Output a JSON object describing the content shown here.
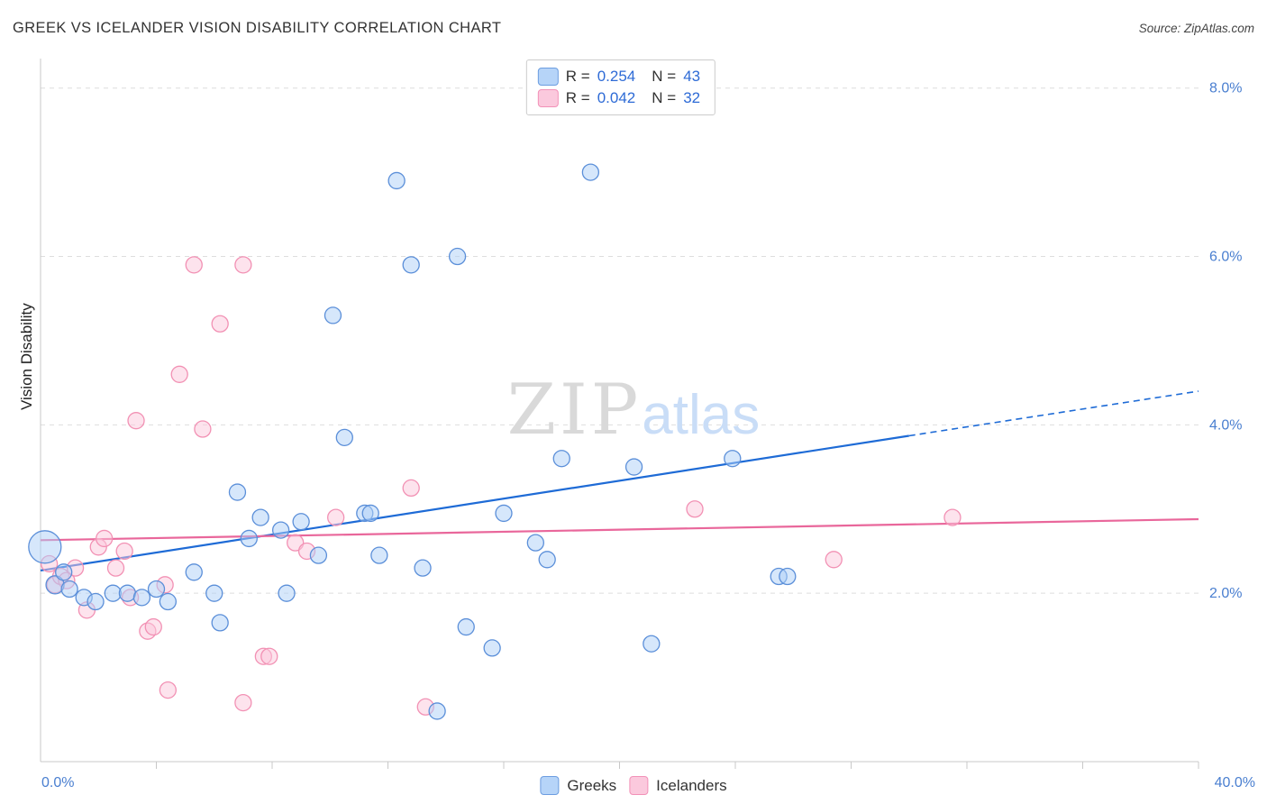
{
  "header": {
    "title": "GREEK VS ICELANDER VISION DISABILITY CORRELATION CHART",
    "source": "Source: ZipAtlas.com"
  },
  "watermark": {
    "zip": "ZIP",
    "atlas": "atlas"
  },
  "stats": [
    {
      "r_label": "R =",
      "r": "0.254",
      "n_label": "N =",
      "n": "43"
    },
    {
      "r_label": "R =",
      "r": "0.042",
      "n_label": "N =",
      "n": "32"
    }
  ],
  "bottom_legend": [
    {
      "label": "Greeks"
    },
    {
      "label": "Icelanders"
    }
  ],
  "colors": {
    "blue_fill": "#AECFF7",
    "blue_stroke": "#5B8FD9",
    "blue_trend": "#1E6BD6",
    "pink_fill": "#FBC7DB",
    "pink_stroke": "#F291B4",
    "pink_trend": "#E9679B",
    "axis_text": "#4A7FD0",
    "grid": "#dedede",
    "axis_line": "#c8c8c8"
  },
  "chart_data": {
    "type": "scatter",
    "title": "GREEK VS ICELANDER VISION DISABILITY CORRELATION CHART",
    "xlabel": "",
    "ylabel": "Vision Disability",
    "xlim": [
      0,
      40
    ],
    "ylim": [
      0,
      8.35
    ],
    "grid": true,
    "x_min_label": "0.0%",
    "x_max_label": "40.0%",
    "x_ticks": [
      4,
      8,
      12,
      16,
      20,
      24,
      28,
      32,
      36,
      40
    ],
    "y_ticks": [
      {
        "value": 2,
        "label": "2.0%"
      },
      {
        "value": 4,
        "label": "4.0%"
      },
      {
        "value": 6,
        "label": "6.0%"
      },
      {
        "value": 8,
        "label": "8.0%"
      }
    ],
    "series": [
      {
        "name": "Greeks",
        "R": 0.254,
        "N": 43,
        "trend": {
          "x1": 0,
          "y1": 2.27,
          "x2": 30,
          "y2": 3.87,
          "dash_x2": 40,
          "dash_y2": 4.4
        },
        "points": [
          [
            0.15,
            2.55,
            18
          ],
          [
            0.5,
            2.1,
            10
          ],
          [
            0.8,
            2.25
          ],
          [
            1.0,
            2.05
          ],
          [
            1.5,
            1.95
          ],
          [
            1.9,
            1.9
          ],
          [
            2.5,
            2.0
          ],
          [
            3.0,
            2.0
          ],
          [
            3.5,
            1.95
          ],
          [
            4.0,
            2.05
          ],
          [
            4.4,
            1.9
          ],
          [
            5.3,
            2.25
          ],
          [
            6.0,
            2.0
          ],
          [
            6.2,
            1.65
          ],
          [
            6.8,
            3.2
          ],
          [
            7.2,
            2.65
          ],
          [
            7.6,
            2.9
          ],
          [
            8.3,
            2.75
          ],
          [
            8.5,
            2.0
          ],
          [
            9.0,
            2.85
          ],
          [
            9.6,
            2.45
          ],
          [
            10.1,
            5.3
          ],
          [
            10.5,
            3.85
          ],
          [
            11.2,
            2.95
          ],
          [
            11.4,
            2.95
          ],
          [
            11.7,
            2.45
          ],
          [
            12.3,
            6.9
          ],
          [
            12.8,
            5.9
          ],
          [
            13.2,
            2.3
          ],
          [
            13.7,
            0.6
          ],
          [
            14.4,
            6.0
          ],
          [
            14.7,
            1.6
          ],
          [
            15.6,
            1.35
          ],
          [
            16.0,
            2.95
          ],
          [
            17.1,
            2.6
          ],
          [
            17.5,
            2.4
          ],
          [
            18.0,
            3.6
          ],
          [
            19.0,
            7.0
          ],
          [
            20.5,
            3.5
          ],
          [
            21.1,
            1.4
          ],
          [
            23.9,
            3.6
          ],
          [
            25.5,
            2.2
          ],
          [
            25.8,
            2.2
          ]
        ]
      },
      {
        "name": "Icelanders",
        "R": 0.042,
        "N": 32,
        "trend": {
          "x1": 0,
          "y1": 2.63,
          "x2": 40,
          "y2": 2.88
        },
        "points": [
          [
            0.3,
            2.35
          ],
          [
            0.5,
            2.1
          ],
          [
            0.7,
            2.2
          ],
          [
            0.9,
            2.15
          ],
          [
            1.2,
            2.3
          ],
          [
            1.6,
            1.8
          ],
          [
            2.0,
            2.55
          ],
          [
            2.2,
            2.65
          ],
          [
            2.6,
            2.3
          ],
          [
            2.9,
            2.5
          ],
          [
            3.1,
            1.95
          ],
          [
            3.3,
            4.05
          ],
          [
            3.7,
            1.55
          ],
          [
            3.9,
            1.6
          ],
          [
            4.3,
            2.1
          ],
          [
            4.4,
            0.85
          ],
          [
            4.8,
            4.6
          ],
          [
            5.3,
            5.9
          ],
          [
            5.6,
            3.95
          ],
          [
            6.2,
            5.2
          ],
          [
            7.0,
            5.9
          ],
          [
            7.0,
            0.7
          ],
          [
            7.7,
            1.25
          ],
          [
            7.9,
            1.25
          ],
          [
            8.8,
            2.6
          ],
          [
            9.2,
            2.5
          ],
          [
            10.2,
            2.9
          ],
          [
            12.8,
            3.25
          ],
          [
            13.3,
            0.65
          ],
          [
            22.6,
            3.0
          ],
          [
            27.4,
            2.4
          ],
          [
            31.5,
            2.9
          ]
        ]
      }
    ]
  }
}
